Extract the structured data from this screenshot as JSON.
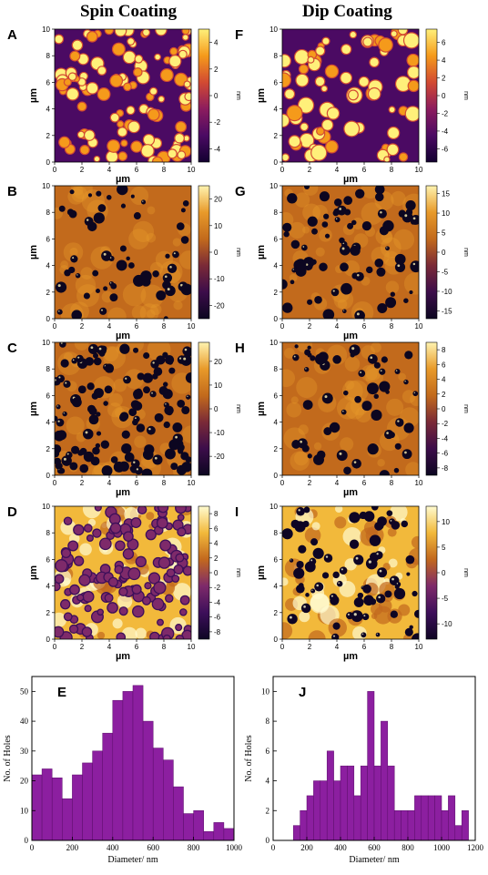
{
  "titles": {
    "left": "Spin Coating",
    "right": "Dip Coating"
  },
  "afm_axes": {
    "ticks": [
      "0",
      "2",
      "4",
      "6",
      "8",
      "10"
    ],
    "xlabel": "µm",
    "ylabel": "µm",
    "unit": "nm"
  },
  "afm_panels": [
    {
      "id": "A",
      "letter": "A",
      "colormap": "fire",
      "feature": "islands",
      "density": "high",
      "colorbar_ticks": [
        "4",
        "2",
        "0",
        "-2",
        "-4"
      ],
      "colorbar_range": [
        -5,
        5
      ]
    },
    {
      "id": "B",
      "letter": "B",
      "colormap": "copper",
      "feature": "holes",
      "density": "sparse",
      "colorbar_ticks": [
        "20",
        "10",
        "0",
        "-10",
        "-20"
      ],
      "colorbar_range": [
        -25,
        25
      ]
    },
    {
      "id": "C",
      "letter": "C",
      "colormap": "copper",
      "feature": "holes",
      "density": "dense",
      "colorbar_ticks": [
        "20",
        "10",
        "0",
        "-10",
        "-20"
      ],
      "colorbar_range": [
        -28,
        28
      ]
    },
    {
      "id": "D",
      "letter": "D",
      "colormap": "mixed",
      "feature": "rimmed holes",
      "density": "dense",
      "colorbar_ticks": [
        "8",
        "6",
        "4",
        "2",
        "0",
        "-2",
        "-4",
        "-6",
        "-8"
      ],
      "colorbar_range": [
        -9,
        9
      ]
    },
    {
      "id": "F",
      "letter": "F",
      "colormap": "fire",
      "feature": "islands",
      "density": "medium",
      "colorbar_ticks": [
        "6",
        "4",
        "2",
        "0",
        "-2",
        "-4",
        "-6"
      ],
      "colorbar_range": [
        -7.5,
        7.5
      ]
    },
    {
      "id": "G",
      "letter": "G",
      "colormap": "copper",
      "feature": "holes",
      "density": "medium",
      "colorbar_ticks": [
        "15",
        "10",
        "5",
        "0",
        "-5",
        "-10",
        "-15"
      ],
      "colorbar_range": [
        -17,
        17
      ]
    },
    {
      "id": "H",
      "letter": "H",
      "colormap": "copper",
      "feature": "holes",
      "density": "sparse",
      "colorbar_ticks": [
        "8",
        "6",
        "4",
        "2",
        "0",
        "-2",
        "-4",
        "-6",
        "-8"
      ],
      "colorbar_range": [
        -9,
        9
      ]
    },
    {
      "id": "I",
      "letter": "I",
      "colormap": "mixed",
      "feature": "holes",
      "density": "medium",
      "colorbar_ticks": [
        "10",
        "5",
        "0",
        "-5",
        "-10"
      ],
      "colorbar_range": [
        -13,
        13
      ]
    }
  ],
  "colors": {
    "bar": "#8c1fa0",
    "bar_edge": "#5b0e6a"
  },
  "chart_data": [
    {
      "id": "E",
      "letter": "E",
      "type": "bar",
      "xlabel": "Diameter/ nm",
      "ylabel": "No. of Holes",
      "xlim": [
        0,
        1000
      ],
      "ylim": [
        0,
        55
      ],
      "bin_width": 50,
      "x": [
        25,
        75,
        125,
        175,
        225,
        275,
        325,
        375,
        425,
        475,
        525,
        575,
        625,
        675,
        725,
        775,
        825,
        875,
        925,
        975
      ],
      "values": [
        22,
        24,
        21,
        14,
        22,
        26,
        30,
        36,
        47,
        50,
        52,
        40,
        31,
        27,
        18,
        9,
        10,
        3,
        6,
        4
      ],
      "xticks": [
        "0",
        "200",
        "400",
        "600",
        "800",
        "1000"
      ],
      "yticks": [
        "0",
        "10",
        "20",
        "30",
        "40",
        "50"
      ]
    },
    {
      "id": "J",
      "letter": "J",
      "type": "bar",
      "xlabel": "Diameter/ nm",
      "ylabel": "No. of Holes",
      "xlim": [
        0,
        1200
      ],
      "ylim": [
        0,
        11
      ],
      "bin_width": 40,
      "x": [
        140,
        180,
        220,
        260,
        300,
        340,
        380,
        420,
        460,
        500,
        540,
        580,
        620,
        660,
        700,
        740,
        780,
        820,
        860,
        900,
        940,
        980,
        1020,
        1060,
        1100,
        1140
      ],
      "values": [
        1,
        2,
        3,
        4,
        4,
        6,
        4,
        5,
        5,
        3,
        5,
        10,
        5,
        8,
        5,
        2,
        2,
        2,
        3,
        3,
        3,
        3,
        2,
        3,
        1,
        2
      ],
      "xticks": [
        "0",
        "200",
        "400",
        "600",
        "800",
        "1000",
        "1200"
      ],
      "yticks": [
        "0",
        "2",
        "4",
        "6",
        "8",
        "10"
      ]
    }
  ]
}
